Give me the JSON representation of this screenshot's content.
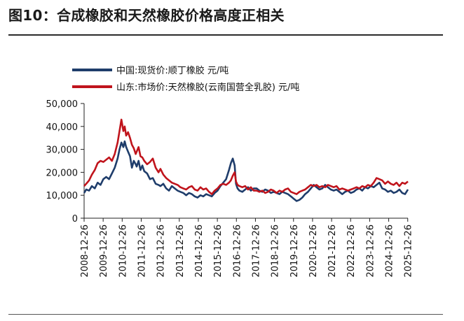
{
  "header": {
    "title": "图10：合成橡胶和天然橡胶价格高度正相关"
  },
  "colors": {
    "china_line": "#1f3d6b",
    "shandong_line": "#c0141c",
    "axis": "#222222"
  },
  "chart_data": {
    "type": "line",
    "title": "图10：合成橡胶和天然橡胶价格高度正相关",
    "xlabel": "",
    "ylabel": "",
    "ylim": [
      0,
      50000
    ],
    "y_ticks": [
      "0",
      "10,000",
      "20,000",
      "30,000",
      "40,000",
      "50,000"
    ],
    "y_tick_values": [
      0,
      10000,
      20000,
      30000,
      40000,
      50000
    ],
    "x_ticks": [
      "2008-12-26",
      "2009-12-26",
      "2010-12-26",
      "2011-12-26",
      "2012-12-26",
      "2013-12-26",
      "2014-12-26",
      "2015-12-26",
      "2016-12-26",
      "2017-12-26",
      "2018-12-26",
      "2019-12-26",
      "2020-12-26",
      "2021-12-26",
      "2022-12-26",
      "2023-12-26",
      "2024-12-26",
      "2025-12-26"
    ],
    "x_range": [
      2008.99,
      2026.0
    ],
    "legend_position": "top-left",
    "series": [
      {
        "name": "中国:现货价:顺丁橡胶  元/吨",
        "color": "#1f3d6b",
        "x": [
          2008.99,
          2009.1,
          2009.25,
          2009.4,
          2009.55,
          2009.7,
          2009.85,
          2010.0,
          2010.15,
          2010.3,
          2010.45,
          2010.6,
          2010.75,
          2010.85,
          2010.95,
          2011.05,
          2011.12,
          2011.2,
          2011.3,
          2011.4,
          2011.5,
          2011.6,
          2011.7,
          2011.75,
          2011.85,
          2011.95,
          2012.05,
          2012.15,
          2012.3,
          2012.45,
          2012.6,
          2012.75,
          2012.9,
          2013.0,
          2013.15,
          2013.3,
          2013.45,
          2013.6,
          2013.75,
          2013.9,
          2014.05,
          2014.2,
          2014.35,
          2014.5,
          2014.65,
          2014.8,
          2014.95,
          2015.1,
          2015.25,
          2015.4,
          2015.55,
          2015.7,
          2015.85,
          2016.0,
          2016.15,
          2016.3,
          2016.45,
          2016.6,
          2016.7,
          2016.8,
          2016.9,
          2016.97,
          2017.05,
          2017.15,
          2017.3,
          2017.45,
          2017.6,
          2017.75,
          2017.9,
          2018.05,
          2018.2,
          2018.35,
          2018.5,
          2018.65,
          2018.8,
          2018.95,
          2019.1,
          2019.25,
          2019.4,
          2019.55,
          2019.7,
          2019.85,
          2020.0,
          2020.15,
          2020.3,
          2020.45,
          2020.6,
          2020.75,
          2020.9,
          2021.05,
          2021.2,
          2021.35,
          2021.5,
          2021.65,
          2021.8,
          2021.95,
          2022.1,
          2022.25,
          2022.4,
          2022.55,
          2022.7,
          2022.85,
          2023.0,
          2023.15,
          2023.3,
          2023.45,
          2023.6,
          2023.75,
          2023.9,
          2024.05,
          2024.2,
          2024.35,
          2024.5,
          2024.65,
          2024.8,
          2024.95,
          2025.1,
          2025.25,
          2025.4,
          2025.55,
          2025.7,
          2025.85,
          2026.0
        ],
        "y": [
          11000,
          12500,
          12000,
          14000,
          13000,
          15500,
          14500,
          17000,
          18000,
          17000,
          19500,
          22000,
          26000,
          30000,
          33000,
          31000,
          33500,
          31000,
          29000,
          27000,
          22000,
          25000,
          23500,
          22500,
          25000,
          21000,
          23000,
          20500,
          19500,
          17000,
          17500,
          15000,
          14500,
          14000,
          15000,
          13000,
          12000,
          14000,
          13000,
          12000,
          11500,
          11000,
          10000,
          11000,
          10500,
          9500,
          9000,
          10000,
          9500,
          10500,
          10000,
          9500,
          11000,
          12000,
          14000,
          15500,
          17000,
          21000,
          24000,
          26000,
          23000,
          15000,
          13000,
          12000,
          11500,
          12500,
          13500,
          12000,
          13000,
          13000,
          12000,
          11500,
          12500,
          12000,
          11000,
          11500,
          11000,
          10500,
          11500,
          11000,
          10500,
          9500,
          8500,
          7500,
          8000,
          9000,
          10500,
          11500,
          13000,
          14500,
          13500,
          12500,
          13000,
          14500,
          13500,
          12500,
          12000,
          12500,
          11500,
          10500,
          11500,
          12000,
          11000,
          11500,
          12500,
          13000,
          12000,
          13500,
          13000,
          14000,
          13500,
          14500,
          15500,
          13000,
          12500,
          11500,
          12000,
          11000,
          11500,
          12500,
          11000,
          10500,
          12500
        ]
      },
      {
        "name": "山东:市场价:天然橡胶(云南国营全乳胶)  元/吨",
        "color": "#c0141c",
        "x": [
          2008.99,
          2009.1,
          2009.25,
          2009.4,
          2009.55,
          2009.7,
          2009.85,
          2010.0,
          2010.15,
          2010.3,
          2010.45,
          2010.6,
          2010.75,
          2010.85,
          2010.95,
          2011.05,
          2011.12,
          2011.2,
          2011.3,
          2011.4,
          2011.5,
          2011.6,
          2011.7,
          2011.75,
          2011.85,
          2011.95,
          2012.05,
          2012.15,
          2012.3,
          2012.45,
          2012.6,
          2012.75,
          2012.9,
          2013.0,
          2013.15,
          2013.3,
          2013.45,
          2013.6,
          2013.75,
          2013.9,
          2014.05,
          2014.2,
          2014.35,
          2014.5,
          2014.65,
          2014.8,
          2014.95,
          2015.1,
          2015.25,
          2015.4,
          2015.55,
          2015.7,
          2015.85,
          2016.0,
          2016.15,
          2016.3,
          2016.45,
          2016.6,
          2016.7,
          2016.8,
          2016.9,
          2016.97,
          2017.05,
          2017.15,
          2017.3,
          2017.45,
          2017.6,
          2017.75,
          2017.9,
          2018.05,
          2018.2,
          2018.35,
          2018.5,
          2018.65,
          2018.8,
          2018.95,
          2019.1,
          2019.25,
          2019.4,
          2019.55,
          2019.7,
          2019.85,
          2020.0,
          2020.15,
          2020.3,
          2020.45,
          2020.6,
          2020.75,
          2020.9,
          2021.05,
          2021.2,
          2021.35,
          2021.5,
          2021.65,
          2021.8,
          2021.95,
          2022.1,
          2022.25,
          2022.4,
          2022.55,
          2022.7,
          2022.85,
          2023.0,
          2023.15,
          2023.3,
          2023.45,
          2023.6,
          2023.75,
          2023.9,
          2024.05,
          2024.2,
          2024.35,
          2024.5,
          2024.65,
          2024.8,
          2024.95,
          2025.1,
          2025.25,
          2025.4,
          2025.55,
          2025.7,
          2025.85,
          2026.0
        ],
        "y": [
          14000,
          15000,
          16500,
          19000,
          21000,
          24000,
          25000,
          24500,
          25500,
          26500,
          25000,
          28000,
          33000,
          38000,
          43000,
          38000,
          40000,
          36000,
          37500,
          35000,
          32000,
          30500,
          28000,
          29000,
          31000,
          27000,
          26500,
          25000,
          23500,
          24500,
          26000,
          22000,
          20000,
          21500,
          19000,
          17500,
          16500,
          15500,
          15000,
          14500,
          13500,
          13000,
          12500,
          13500,
          14000,
          12500,
          12000,
          13500,
          12500,
          13000,
          11500,
          10500,
          12000,
          13000,
          14500,
          15000,
          14500,
          15500,
          16500,
          18500,
          20000,
          16000,
          14500,
          14000,
          13500,
          14000,
          12500,
          13500,
          12000,
          12000,
          11500,
          12000,
          11000,
          11500,
          12500,
          12000,
          11000,
          12000,
          11500,
          12500,
          13000,
          11500,
          11000,
          10500,
          11500,
          12000,
          12500,
          13500,
          14500,
          14000,
          14500,
          13500,
          14000,
          13500,
          14500,
          14000,
          13500,
          14000,
          12500,
          13000,
          12500,
          12000,
          12500,
          13000,
          13500,
          13000,
          14000,
          13500,
          14500,
          14000,
          15500,
          17500,
          17000,
          16500,
          15000,
          16000,
          15000,
          14500,
          15500,
          14000,
          15500,
          15000,
          16000
        ]
      }
    ]
  }
}
